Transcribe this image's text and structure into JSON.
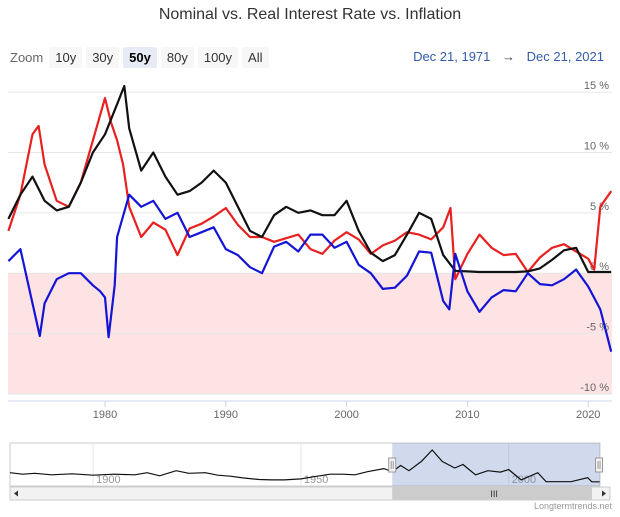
{
  "chart_data": {
    "type": "line",
    "title": "Nominal vs. Real Interest Rate vs. Inflation",
    "x_range": [
      1971.97,
      2021.97
    ],
    "ylim": [
      -10.5,
      16
    ],
    "y_ticks": [
      15,
      10,
      5,
      0,
      -5,
      -10
    ],
    "y_tick_labels": [
      "15 %",
      "10 %",
      "5 %",
      "0 %",
      "-5 %",
      "-10 %"
    ],
    "x_ticks": [
      1980,
      1990,
      2000,
      2010,
      2020
    ],
    "x_tick_labels": [
      "1980",
      "1990",
      "2000",
      "2010",
      "2020"
    ],
    "negative_zone_color": "#fde3e3",
    "grid": true,
    "legend": "none",
    "series": [
      {
        "color": "#e82020",
        "points": [
          [
            1972,
            3.5
          ],
          [
            1973,
            6.5
          ],
          [
            1974,
            11.5
          ],
          [
            1974.5,
            12.2
          ],
          [
            1975,
            9
          ],
          [
            1976,
            6
          ],
          [
            1977,
            5.5
          ],
          [
            1978,
            7.5
          ],
          [
            1979,
            11
          ],
          [
            1980,
            14.5
          ],
          [
            1980.5,
            12.5
          ],
          [
            1981,
            11
          ],
          [
            1981.5,
            9
          ],
          [
            1982,
            5.5
          ],
          [
            1983,
            3
          ],
          [
            1984,
            4.2
          ],
          [
            1985,
            3.6
          ],
          [
            1986,
            1.5
          ],
          [
            1987,
            3.7
          ],
          [
            1988,
            4.1
          ],
          [
            1989,
            4.7
          ],
          [
            1990,
            5.4
          ],
          [
            1991,
            4
          ],
          [
            1992,
            3
          ],
          [
            1993,
            3
          ],
          [
            1994,
            2.6
          ],
          [
            1995,
            2.9
          ],
          [
            1996,
            3.2
          ],
          [
            1997,
            2
          ],
          [
            1998,
            1.6
          ],
          [
            1999,
            2.7
          ],
          [
            2000,
            3.4
          ],
          [
            2001,
            2.8
          ],
          [
            2002,
            1.6
          ],
          [
            2003,
            2.3
          ],
          [
            2004,
            2.7
          ],
          [
            2005,
            3.4
          ],
          [
            2006,
            3.2
          ],
          [
            2007,
            2.8
          ],
          [
            2008,
            3.8
          ],
          [
            2008.6,
            5.4
          ],
          [
            2009,
            -0.5
          ],
          [
            2010,
            1.6
          ],
          [
            2011,
            3.2
          ],
          [
            2012,
            2.1
          ],
          [
            2013,
            1.5
          ],
          [
            2014,
            1.6
          ],
          [
            2015,
            0.1
          ],
          [
            2016,
            1.3
          ],
          [
            2017,
            2.1
          ],
          [
            2018,
            2.4
          ],
          [
            2019,
            1.8
          ],
          [
            2020,
            1.2
          ],
          [
            2020.5,
            0.3
          ],
          [
            2021,
            5.5
          ],
          [
            2021.9,
            6.8
          ]
        ]
      },
      {
        "color": "#111111",
        "points": [
          [
            1972,
            4.5
          ],
          [
            1973,
            6.5
          ],
          [
            1974,
            8
          ],
          [
            1975,
            6
          ],
          [
            1976,
            5.2
          ],
          [
            1977,
            5.5
          ],
          [
            1978,
            7.5
          ],
          [
            1979,
            10
          ],
          [
            1980,
            11.5
          ],
          [
            1981,
            14
          ],
          [
            1981.6,
            15.5
          ],
          [
            1982,
            12
          ],
          [
            1983,
            8.5
          ],
          [
            1984,
            10
          ],
          [
            1985,
            8
          ],
          [
            1986,
            6.5
          ],
          [
            1987,
            6.8
          ],
          [
            1988,
            7.5
          ],
          [
            1989,
            8.5
          ],
          [
            1990,
            7.5
          ],
          [
            1991,
            5.5
          ],
          [
            1992,
            3.5
          ],
          [
            1993,
            3
          ],
          [
            1994,
            4.8
          ],
          [
            1995,
            5.5
          ],
          [
            1996,
            5
          ],
          [
            1997,
            5.2
          ],
          [
            1998,
            4.8
          ],
          [
            1999,
            4.8
          ],
          [
            2000,
            6
          ],
          [
            2001,
            3.5
          ],
          [
            2002,
            1.7
          ],
          [
            2003,
            1
          ],
          [
            2004,
            1.5
          ],
          [
            2005,
            3.2
          ],
          [
            2006,
            5
          ],
          [
            2007,
            4.5
          ],
          [
            2008,
            1.5
          ],
          [
            2009,
            0.2
          ],
          [
            2010,
            0.15
          ],
          [
            2011,
            0.1
          ],
          [
            2012,
            0.1
          ],
          [
            2013,
            0.1
          ],
          [
            2014,
            0.1
          ],
          [
            2015,
            0.15
          ],
          [
            2016,
            0.4
          ],
          [
            2017,
            1.1
          ],
          [
            2018,
            1.9
          ],
          [
            2019,
            2.1
          ],
          [
            2020,
            0.1
          ],
          [
            2021,
            0.1
          ],
          [
            2021.9,
            0.1
          ]
        ]
      },
      {
        "color": "#1414d6",
        "points": [
          [
            1972,
            1
          ],
          [
            1973,
            2
          ],
          [
            1974,
            -2.5
          ],
          [
            1974.6,
            -5.2
          ],
          [
            1975,
            -2.5
          ],
          [
            1976,
            -0.5
          ],
          [
            1977,
            0
          ],
          [
            1978,
            0
          ],
          [
            1979,
            -1
          ],
          [
            1979.6,
            -1.5
          ],
          [
            1980,
            -2
          ],
          [
            1980.3,
            -5.3
          ],
          [
            1980.8,
            -1
          ],
          [
            1981,
            3
          ],
          [
            1982,
            6.5
          ],
          [
            1983,
            5.5
          ],
          [
            1984,
            6
          ],
          [
            1985,
            4.5
          ],
          [
            1986,
            5
          ],
          [
            1987,
            3
          ],
          [
            1988,
            3.4
          ],
          [
            1989,
            3.8
          ],
          [
            1990,
            2
          ],
          [
            1991,
            1.5
          ],
          [
            1992,
            0.5
          ],
          [
            1993,
            0
          ],
          [
            1994,
            2.2
          ],
          [
            1995,
            2.6
          ],
          [
            1996,
            1.8
          ],
          [
            1997,
            3.2
          ],
          [
            1998,
            3.2
          ],
          [
            1999,
            2.1
          ],
          [
            2000,
            2.6
          ],
          [
            2001,
            0.7
          ],
          [
            2002,
            0
          ],
          [
            2003,
            -1.3
          ],
          [
            2004,
            -1.2
          ],
          [
            2005,
            -0.2
          ],
          [
            2006,
            1.8
          ],
          [
            2007,
            1.7
          ],
          [
            2008,
            -2.3
          ],
          [
            2008.5,
            -3
          ],
          [
            2009,
            1.6
          ],
          [
            2010,
            -1.5
          ],
          [
            2011,
            -3.2
          ],
          [
            2012,
            -2
          ],
          [
            2013,
            -1.4
          ],
          [
            2014,
            -1.5
          ],
          [
            2015,
            0
          ],
          [
            2016,
            -0.9
          ],
          [
            2017,
            -1
          ],
          [
            2018,
            -0.5
          ],
          [
            2019,
            0.3
          ],
          [
            2020,
            -1.1
          ],
          [
            2021,
            -3
          ],
          [
            2021.9,
            -6.5
          ]
        ]
      }
    ]
  },
  "header": {
    "zoom_label": "Zoom",
    "zoom_buttons": [
      "10y",
      "30y",
      "50y",
      "80y",
      "100y",
      "All"
    ],
    "zoom_selected": "50y",
    "range_from": "Dec 21, 1971",
    "range_arrow": "→",
    "range_to": "Dec 21, 2021"
  },
  "navigator": {
    "x_range": [
      1880,
      2021.97
    ],
    "tick_labels": [
      "1900",
      "1950",
      "2000"
    ],
    "selection": [
      1971.97,
      2021.97
    ],
    "scroll_grip": "III",
    "series": [
      [
        1880,
        4.5
      ],
      [
        1883,
        3.8
      ],
      [
        1886,
        4.2
      ],
      [
        1890,
        3.5
      ],
      [
        1895,
        4
      ],
      [
        1900,
        3.3
      ],
      [
        1905,
        3.8
      ],
      [
        1910,
        3.5
      ],
      [
        1913,
        4.5
      ],
      [
        1916,
        3
      ],
      [
        1920,
        5.5
      ],
      [
        1923,
        4.2
      ],
      [
        1927,
        4.5
      ],
      [
        1930,
        3.3
      ],
      [
        1933,
        2.8
      ],
      [
        1936,
        2
      ],
      [
        1940,
        1.2
      ],
      [
        1943,
        1
      ],
      [
        1946,
        1
      ],
      [
        1950,
        1.5
      ],
      [
        1953,
        2.5
      ],
      [
        1957,
        3.8
      ],
      [
        1960,
        3.8
      ],
      [
        1963,
        3.5
      ],
      [
        1966,
        5
      ],
      [
        1970,
        6.5
      ],
      [
        1972,
        5
      ],
      [
        1974,
        8
      ],
      [
        1976,
        5.5
      ],
      [
        1979,
        10
      ],
      [
        1981.6,
        15.5
      ],
      [
        1984,
        10
      ],
      [
        1987,
        6.8
      ],
      [
        1989,
        8.5
      ],
      [
        1992,
        3.5
      ],
      [
        1995,
        5.5
      ],
      [
        1998,
        4.8
      ],
      [
        2000,
        6
      ],
      [
        2003,
        1
      ],
      [
        2007,
        4.5
      ],
      [
        2009,
        0.2
      ],
      [
        2015,
        0.15
      ],
      [
        2019,
        2.1
      ],
      [
        2020,
        0.1
      ],
      [
        2021.9,
        0.1
      ]
    ]
  },
  "credit": "Longtermtrends.net"
}
